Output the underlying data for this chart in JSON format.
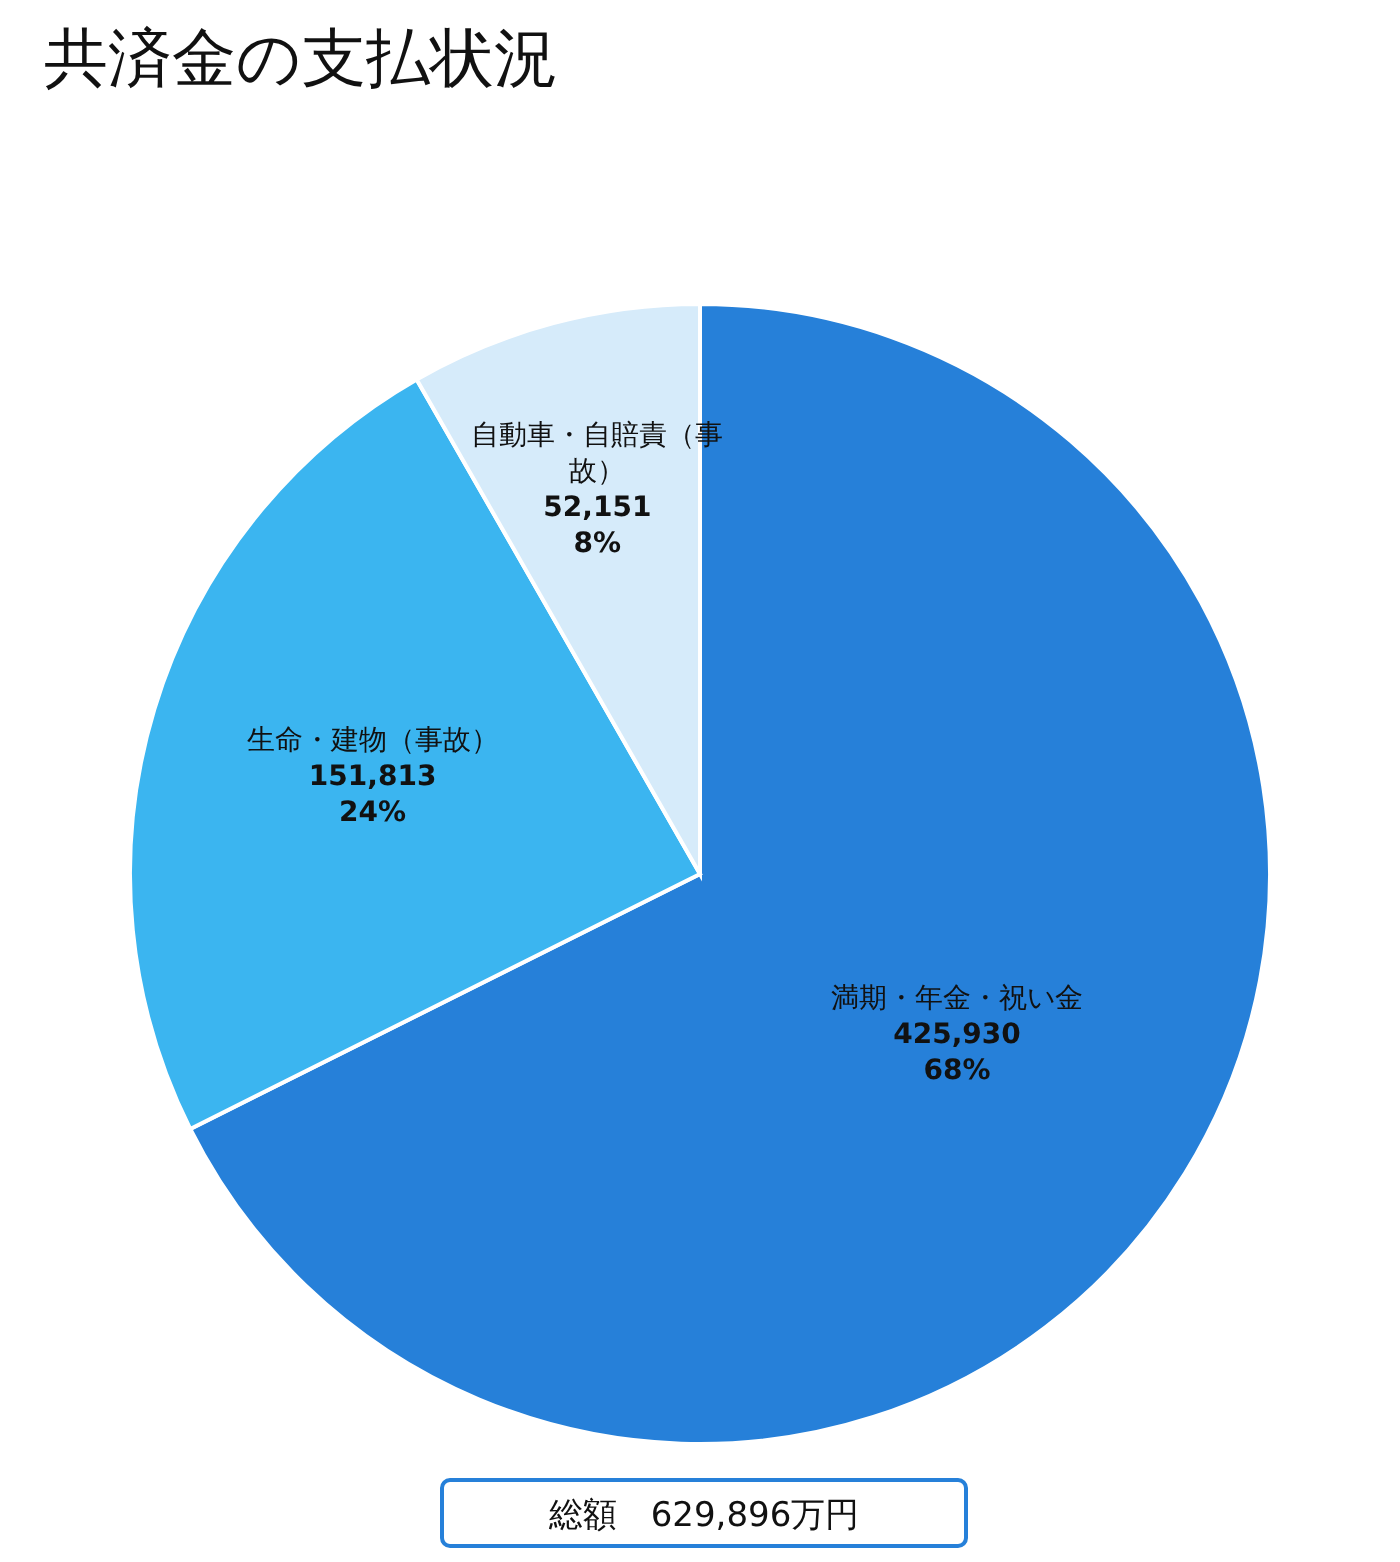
{
  "chart_data": {
    "type": "pie",
    "title": "共済金の支払状況",
    "categories": [
      "満期・年金・祝い金",
      "生命・建物（事故）",
      "自動車・自賠責（事故）"
    ],
    "values": [
      425930,
      151813,
      52151
    ],
    "colors": [
      "#2680d9",
      "#3bb5f0",
      "#d6ebfa"
    ],
    "value_labels": [
      "425,930\n68%",
      "151,813\n24%",
      "52,151\n8%"
    ],
    "annotations": [
      "総額　629,896万円"
    ]
  }
}
